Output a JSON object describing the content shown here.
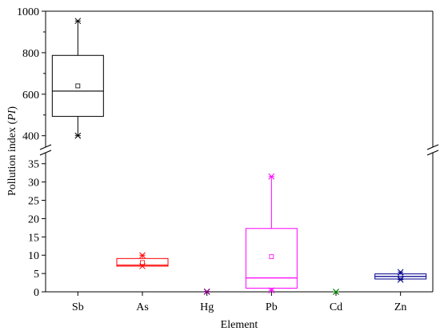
{
  "chart_data": {
    "type": "boxplot",
    "xlabel": "Element",
    "ylabel_prefix": "Pollution index (",
    "ylabel_italic": "PI",
    "ylabel_suffix": ")",
    "y_axis_break": true,
    "upper_ylim": [
      345,
      1000
    ],
    "upper_yticks": [
      "400",
      "600",
      "800",
      "1000"
    ],
    "lower_ylim": [
      0,
      38
    ],
    "lower_yticks": [
      "0",
      "5",
      "10",
      "15",
      "20",
      "25",
      "30",
      "35"
    ],
    "categories": [
      "Sb",
      "As",
      "Hg",
      "Pb",
      "Cd",
      "Zn"
    ],
    "boxes": [
      {
        "name": "Sb",
        "color": "#000000",
        "min": 400,
        "q1": 493,
        "median": 615,
        "q3": 787,
        "max": 953,
        "mean": 640,
        "outliers": []
      },
      {
        "name": "As",
        "color": "#ff0000",
        "min": 7.0,
        "q1": 7.0,
        "median": 7.3,
        "q3": 9.1,
        "max": 10.0,
        "mean": 8.0,
        "outliers": []
      },
      {
        "name": "Hg",
        "color": "#7f007f",
        "min": 0.0,
        "q1": 0.0,
        "median": 0.0,
        "q3": 0.0,
        "max": 0.1,
        "mean": 0.0,
        "outliers": []
      },
      {
        "name": "Pb",
        "color": "#ff00ff",
        "min": 0.4,
        "q1": 1.0,
        "median": 3.8,
        "q3": 17.3,
        "max": 31.5,
        "mean": 9.6,
        "outliers": []
      },
      {
        "name": "Cd",
        "color": "#008000",
        "min": 0.0,
        "q1": 0.0,
        "median": 0.0,
        "q3": 0.0,
        "max": 0.0,
        "mean": 0.0,
        "outliers": []
      },
      {
        "name": "Zn",
        "color": "#00008b",
        "min": 3.3,
        "q1": 3.5,
        "median": 4.2,
        "q3": 4.9,
        "max": 5.4,
        "mean": 4.3,
        "outliers": []
      }
    ]
  }
}
